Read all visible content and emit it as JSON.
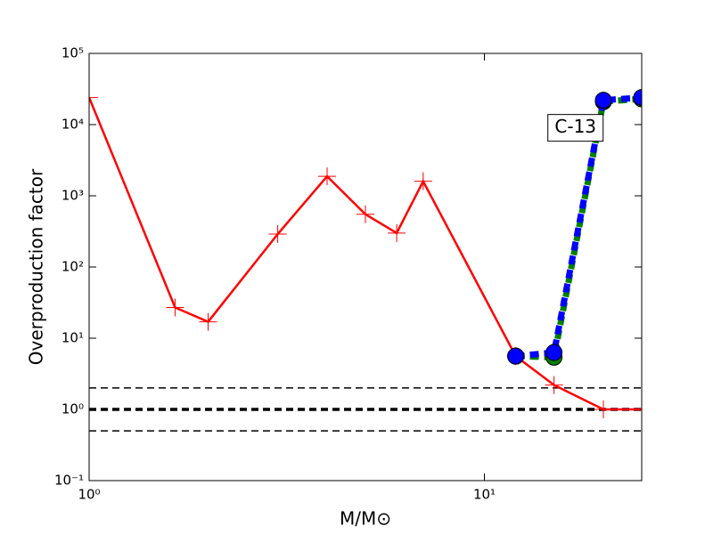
{
  "chart_data": {
    "type": "line",
    "xlabel": "M/M⊙",
    "ylabel": "Overproduction factor",
    "xscale": "log",
    "yscale": "log",
    "xlim": [
      1,
      25
    ],
    "ylim": [
      0.1,
      100000
    ],
    "xticks": [
      {
        "value": 1,
        "label": "10⁰"
      },
      {
        "value": 10,
        "label": "10¹"
      }
    ],
    "yticks": [
      {
        "value": 0.1,
        "label": "10⁻¹"
      },
      {
        "value": 1,
        "label": "10⁰"
      },
      {
        "value": 10,
        "label": "10¹"
      },
      {
        "value": 100,
        "label": "10²"
      },
      {
        "value": 1000,
        "label": "10³"
      },
      {
        "value": 10000,
        "label": "10⁴"
      },
      {
        "value": 100000,
        "label": "10⁵"
      }
    ],
    "hlines": [
      {
        "value": 2,
        "linewidth": 1.5
      },
      {
        "value": 1,
        "linewidth": 3.5
      },
      {
        "value": 0.5,
        "linewidth": 1.5
      }
    ],
    "series": [
      {
        "color": "#ff0000",
        "marker": "plus",
        "linestyle": "solid",
        "x": [
          1,
          1.65,
          2,
          3,
          4,
          5,
          6,
          7,
          12,
          15,
          20,
          25
        ],
        "values": [
          24000,
          27,
          17,
          290,
          1880,
          550,
          300,
          1600,
          5.6,
          2.2,
          1.0,
          1.0
        ]
      },
      {
        "color": "#008000",
        "marker": "circle",
        "linestyle": "dashed",
        "x": [
          12,
          15,
          20,
          25
        ],
        "values": [
          5.6,
          5.4,
          21000,
          23000
        ]
      },
      {
        "color": "#0000ff",
        "marker": "circle",
        "linestyle": "dashed",
        "x": [
          12,
          15,
          20,
          25
        ],
        "values": [
          5.6,
          6.3,
          22000,
          24000
        ]
      }
    ],
    "annotation": {
      "text": "C-13",
      "x": 17,
      "y": 9000
    }
  }
}
